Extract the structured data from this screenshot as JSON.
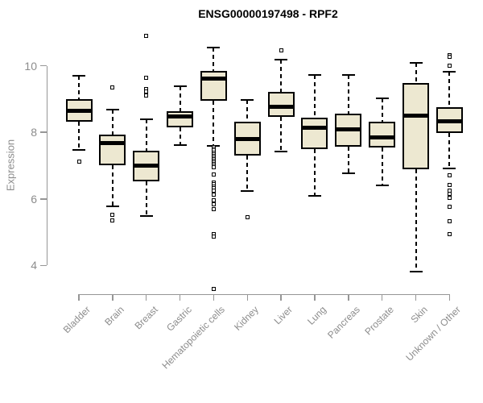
{
  "title": "ENSG00000197498 - RPF2",
  "colors": {
    "background": "#FFFFFF",
    "box_fill": "#EDE8D1",
    "box_border": "#000000",
    "median": "#000000",
    "whisker": "#000000",
    "axis_line": "#969696",
    "axis_text": "#8C8C8C",
    "title_text": "#000000"
  },
  "chart_data": {
    "type": "boxplot",
    "title": "ENSG00000197498 - RPF2",
    "xlabel": "",
    "ylabel": "Expression",
    "yticks": [
      10,
      8,
      6,
      4
    ],
    "ylim": [
      3.2,
      11.0
    ],
    "grid": false,
    "legend": false,
    "categories": [
      "Bladder",
      "Brain",
      "Breast",
      "Gastric",
      "Hematopoietic cells",
      "Kidney",
      "Liver",
      "Lung",
      "Pancreas",
      "Prostate",
      "Skin",
      "Unknown / Other"
    ],
    "series": [
      {
        "name": "Bladder",
        "whisker_low": 7.47,
        "q1": 8.32,
        "median": 8.65,
        "q3": 8.99,
        "whisker_high": 9.7,
        "outliers": [
          7.12
        ]
      },
      {
        "name": "Brain",
        "whisker_low": 5.78,
        "q1": 7.01,
        "median": 7.68,
        "q3": 7.93,
        "whisker_high": 8.68,
        "outliers": [
          9.36,
          5.53,
          5.36
        ]
      },
      {
        "name": "Breast",
        "whisker_low": 5.48,
        "q1": 6.53,
        "median": 7.01,
        "q3": 7.46,
        "whisker_high": 8.39,
        "outliers": [
          10.91,
          9.64,
          9.31,
          9.22,
          9.12
        ]
      },
      {
        "name": "Gastric",
        "whisker_low": 7.62,
        "q1": 8.14,
        "median": 8.49,
        "q3": 8.63,
        "whisker_high": 9.39,
        "outliers": []
      },
      {
        "name": "Hematopoietic cells",
        "whisker_low": 7.6,
        "q1": 8.95,
        "median": 9.62,
        "q3": 9.85,
        "whisker_high": 10.55,
        "outliers": [
          7.55,
          7.5,
          7.45,
          7.4,
          7.35,
          7.3,
          7.25,
          7.2,
          7.15,
          7.1,
          7.05,
          7.0,
          6.95,
          6.73,
          6.49,
          6.44,
          6.38,
          6.32,
          6.26,
          6.12,
          5.96,
          5.84,
          5.68,
          4.95,
          4.88,
          3.3
        ]
      },
      {
        "name": "Kidney",
        "whisker_low": 6.24,
        "q1": 7.3,
        "median": 7.8,
        "q3": 8.32,
        "whisker_high": 8.97,
        "outliers": [
          5.44
        ]
      },
      {
        "name": "Liver",
        "whisker_low": 7.42,
        "q1": 8.47,
        "median": 8.77,
        "q3": 9.21,
        "whisker_high": 10.18,
        "outliers": [
          10.46
        ]
      },
      {
        "name": "Lung",
        "whisker_low": 6.08,
        "q1": 7.5,
        "median": 8.14,
        "q3": 8.45,
        "whisker_high": 9.72,
        "outliers": []
      },
      {
        "name": "Pancreas",
        "whisker_low": 6.77,
        "q1": 7.58,
        "median": 8.1,
        "q3": 8.56,
        "whisker_high": 9.72,
        "outliers": []
      },
      {
        "name": "Prostate",
        "whisker_low": 6.41,
        "q1": 7.54,
        "median": 7.86,
        "q3": 8.32,
        "whisker_high": 9.03,
        "outliers": []
      },
      {
        "name": "Skin",
        "whisker_low": 3.82,
        "q1": 6.89,
        "median": 8.51,
        "q3": 9.48,
        "whisker_high": 10.08,
        "outliers": []
      },
      {
        "name": "Unknown / Other",
        "whisker_low": 6.91,
        "q1": 7.98,
        "median": 8.33,
        "q3": 8.75,
        "whisker_high": 9.82,
        "outliers": [
          10.33,
          10.28,
          10.0,
          6.71,
          6.43,
          6.24,
          6.16,
          6.04,
          5.76,
          5.32,
          4.95
        ]
      }
    ]
  }
}
